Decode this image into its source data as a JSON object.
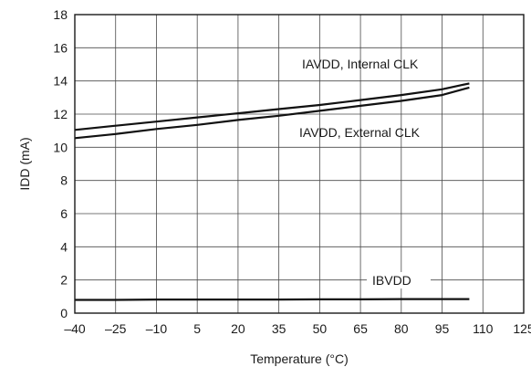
{
  "chart_data": {
    "type": "line",
    "xlabel": "Temperature (°C)",
    "ylabel": "IDD (mA)",
    "xlim": [
      -40,
      125
    ],
    "ylim": [
      0,
      18
    ],
    "x_ticks": [
      "–40",
      "–25",
      "–10",
      "5",
      "20",
      "35",
      "50",
      "65",
      "80",
      "95",
      "110",
      "125"
    ],
    "y_ticks": [
      "0",
      "2",
      "4",
      "6",
      "8",
      "10",
      "12",
      "14",
      "16",
      "18"
    ],
    "grid": true,
    "series": [
      {
        "name": "IAVDD, Internal CLK",
        "x": [
          -40,
          -25,
          -10,
          5,
          20,
          35,
          50,
          65,
          80,
          95,
          105
        ],
        "y": [
          11.05,
          11.3,
          11.55,
          11.8,
          12.05,
          12.3,
          12.55,
          12.85,
          13.15,
          13.5,
          13.85
        ]
      },
      {
        "name": "IAVDD, External CLK",
        "x": [
          -40,
          -25,
          -10,
          5,
          20,
          35,
          50,
          65,
          80,
          95,
          105
        ],
        "y": [
          10.55,
          10.8,
          11.1,
          11.35,
          11.65,
          11.9,
          12.2,
          12.5,
          12.8,
          13.15,
          13.6
        ]
      },
      {
        "name": "IBVDD",
        "x": [
          -40,
          -25,
          -10,
          5,
          20,
          35,
          50,
          65,
          80,
          95,
          105
        ],
        "y": [
          0.8,
          0.8,
          0.82,
          0.82,
          0.82,
          0.82,
          0.83,
          0.83,
          0.85,
          0.85,
          0.85
        ]
      }
    ],
    "annotations": [
      {
        "text": "IAVDD, Internal CLK",
        "series": 0
      },
      {
        "text": "IAVDD, External CLK",
        "series": 1
      },
      {
        "text": "IBVDD",
        "series": 2
      }
    ]
  }
}
